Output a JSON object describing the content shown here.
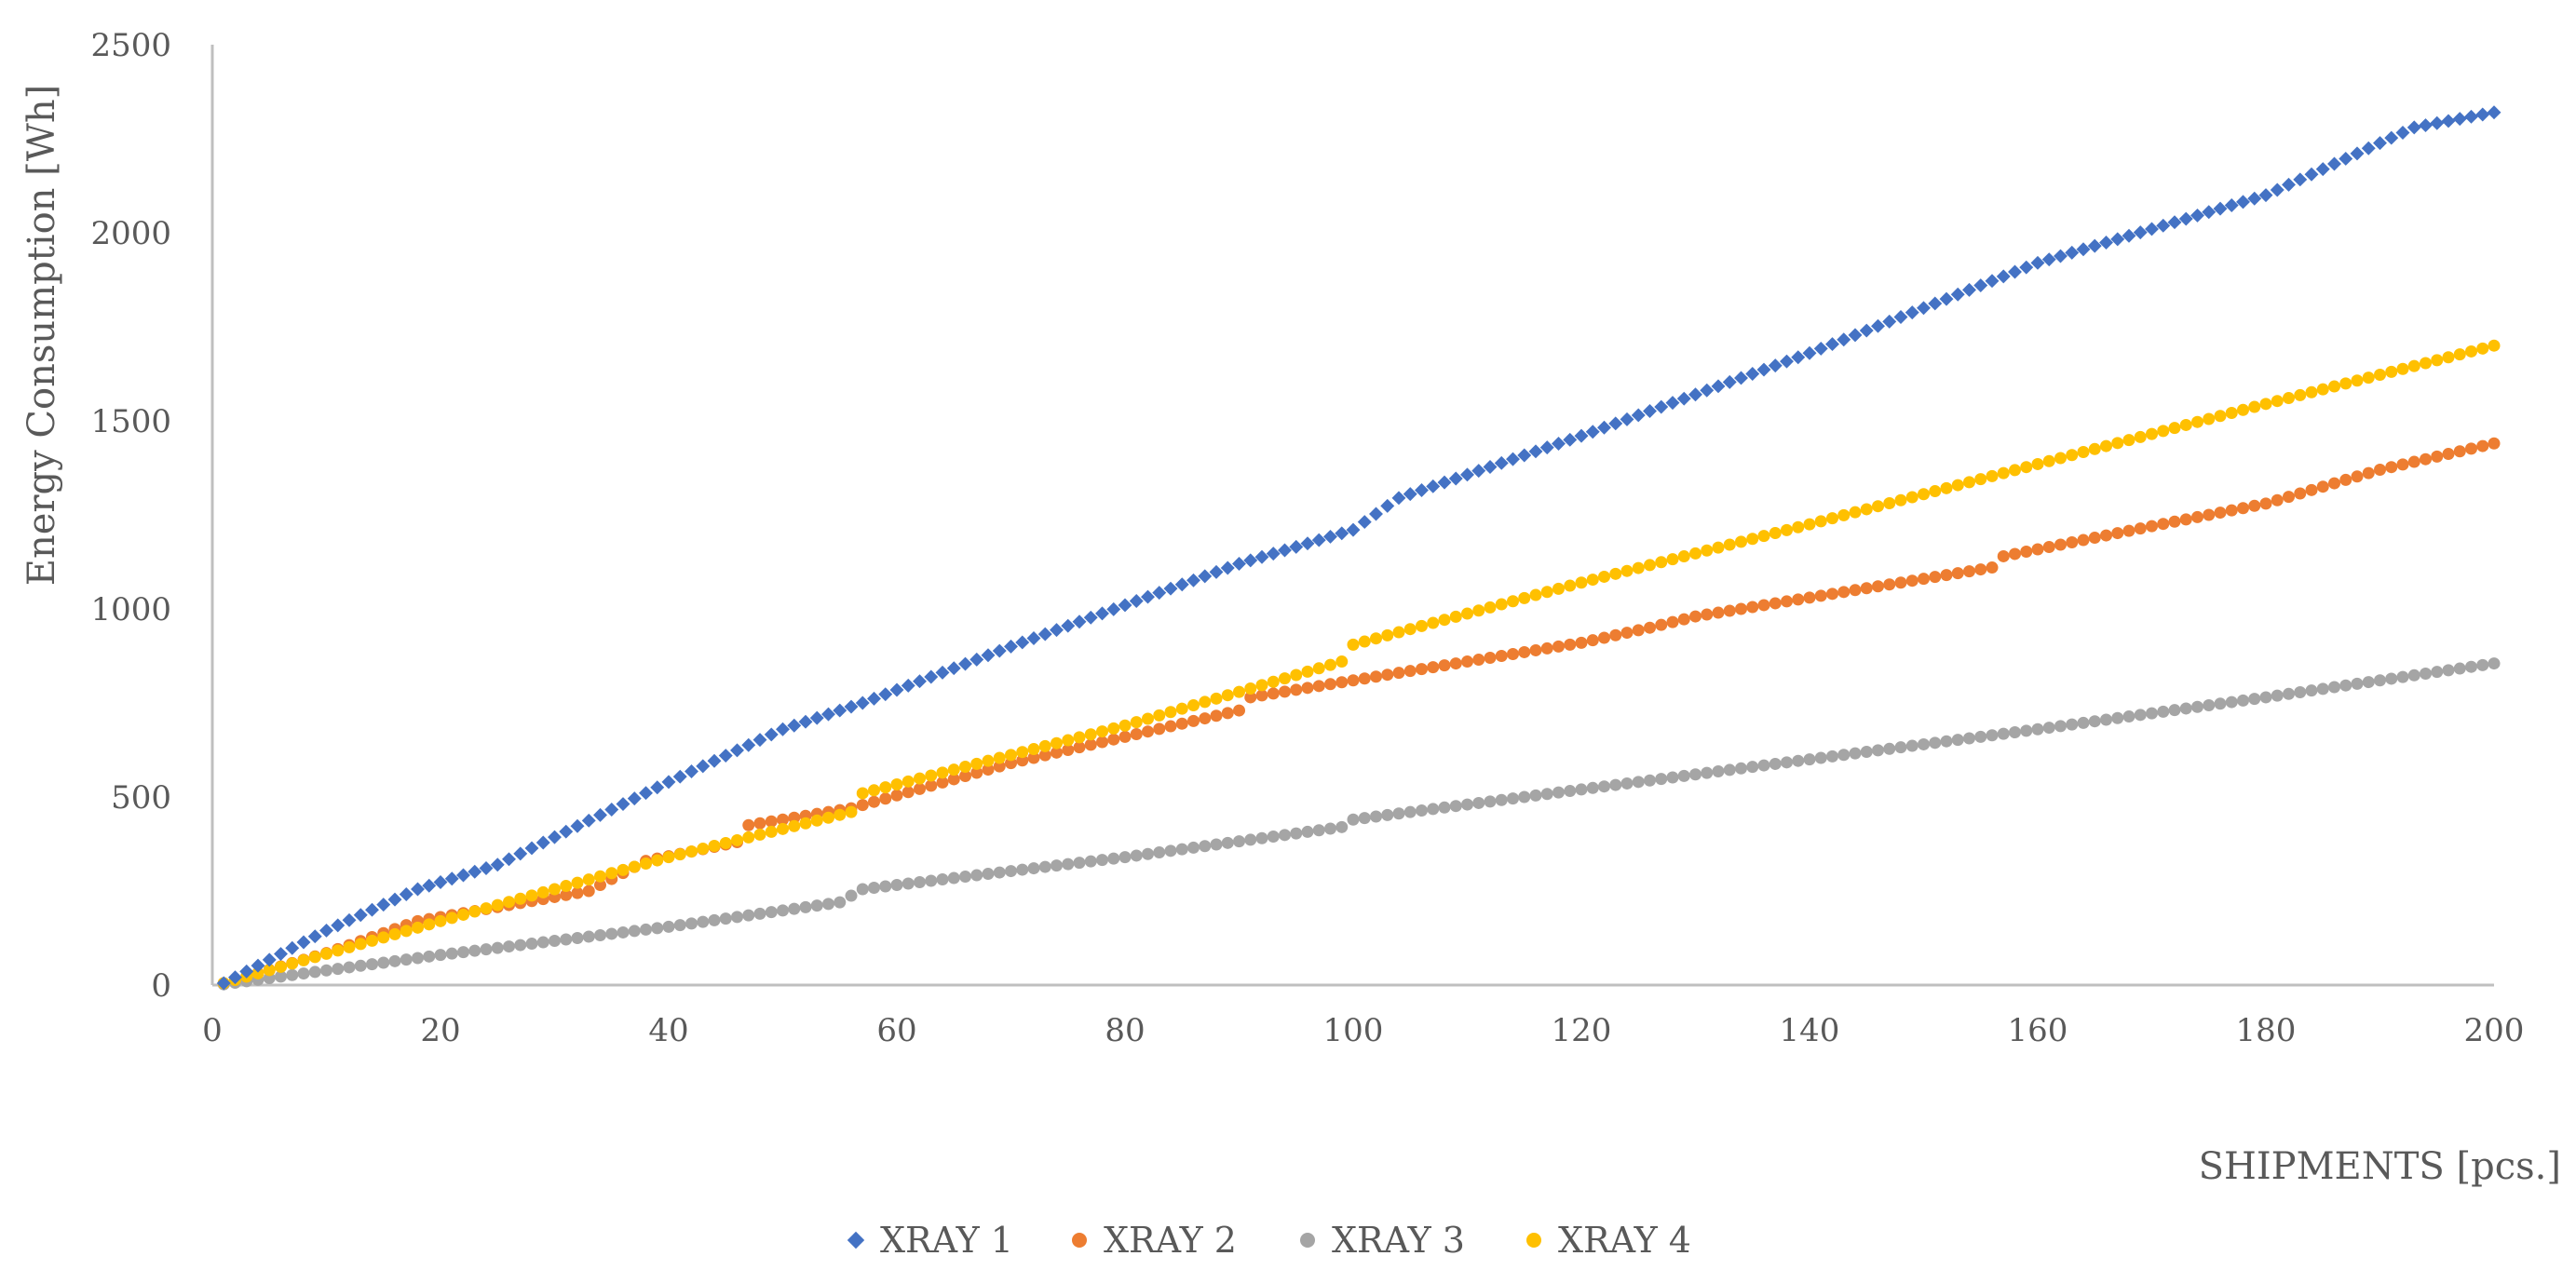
{
  "chart_data": {
    "type": "scatter",
    "title": "",
    "xlabel": "SHIPMENTS [pcs.]",
    "ylabel": "Energy Consumption [Wh]",
    "xlim": [
      0,
      200
    ],
    "ylim": [
      0,
      2500
    ],
    "x_ticks": [
      "0",
      "20",
      "40",
      "60",
      "80",
      "100",
      "120",
      "140",
      "160",
      "180",
      "200"
    ],
    "y_ticks": [
      "0",
      "500",
      "1000",
      "1500",
      "2000",
      "2500"
    ],
    "grid": false,
    "legend_position": "bottom",
    "point_count": 200,
    "series": [
      {
        "name": "XRAY 1",
        "color": "#4472C4",
        "marker": "diamond",
        "points": [
          [
            1,
            5
          ],
          [
            10,
            145
          ],
          [
            18,
            255
          ],
          [
            25,
            320
          ],
          [
            40,
            540
          ],
          [
            50,
            680
          ],
          [
            57,
            750
          ],
          [
            70,
            900
          ],
          [
            80,
            1010
          ],
          [
            90,
            1120
          ],
          [
            100,
            1210
          ],
          [
            104,
            1295
          ],
          [
            120,
            1460
          ],
          [
            140,
            1680
          ],
          [
            160,
            1920
          ],
          [
            180,
            2100
          ],
          [
            193,
            2280
          ],
          [
            200,
            2320
          ]
        ]
      },
      {
        "name": "XRAY 2",
        "color": "#ED7D31",
        "marker": "circle",
        "points": [
          [
            1,
            5
          ],
          [
            10,
            85
          ],
          [
            18,
            170
          ],
          [
            33,
            250
          ],
          [
            38,
            330
          ],
          [
            46,
            380
          ],
          [
            47,
            425
          ],
          [
            56,
            470
          ],
          [
            70,
            590
          ],
          [
            90,
            730
          ],
          [
            91,
            765
          ],
          [
            100,
            810
          ],
          [
            120,
            910
          ],
          [
            126,
            950
          ],
          [
            130,
            980
          ],
          [
            150,
            1080
          ],
          [
            156,
            1110
          ],
          [
            157,
            1140
          ],
          [
            170,
            1220
          ],
          [
            180,
            1280
          ],
          [
            190,
            1370
          ],
          [
            200,
            1440
          ]
        ]
      },
      {
        "name": "XRAY 3",
        "color": "#A5A5A5",
        "marker": "circle",
        "points": [
          [
            1,
            2
          ],
          [
            20,
            80
          ],
          [
            40,
            155
          ],
          [
            55,
            220
          ],
          [
            57,
            255
          ],
          [
            80,
            340
          ],
          [
            99,
            420
          ],
          [
            100,
            440
          ],
          [
            120,
            520
          ],
          [
            140,
            600
          ],
          [
            160,
            680
          ],
          [
            180,
            765
          ],
          [
            200,
            855
          ]
        ]
      },
      {
        "name": "XRAY 4",
        "color": "#FFC000",
        "marker": "circle",
        "points": [
          [
            1,
            5
          ],
          [
            20,
            170
          ],
          [
            40,
            340
          ],
          [
            56,
            460
          ],
          [
            57,
            510
          ],
          [
            80,
            690
          ],
          [
            99,
            860
          ],
          [
            100,
            905
          ],
          [
            120,
            1070
          ],
          [
            140,
            1225
          ],
          [
            160,
            1385
          ],
          [
            180,
            1545
          ],
          [
            200,
            1700
          ]
        ]
      }
    ]
  }
}
